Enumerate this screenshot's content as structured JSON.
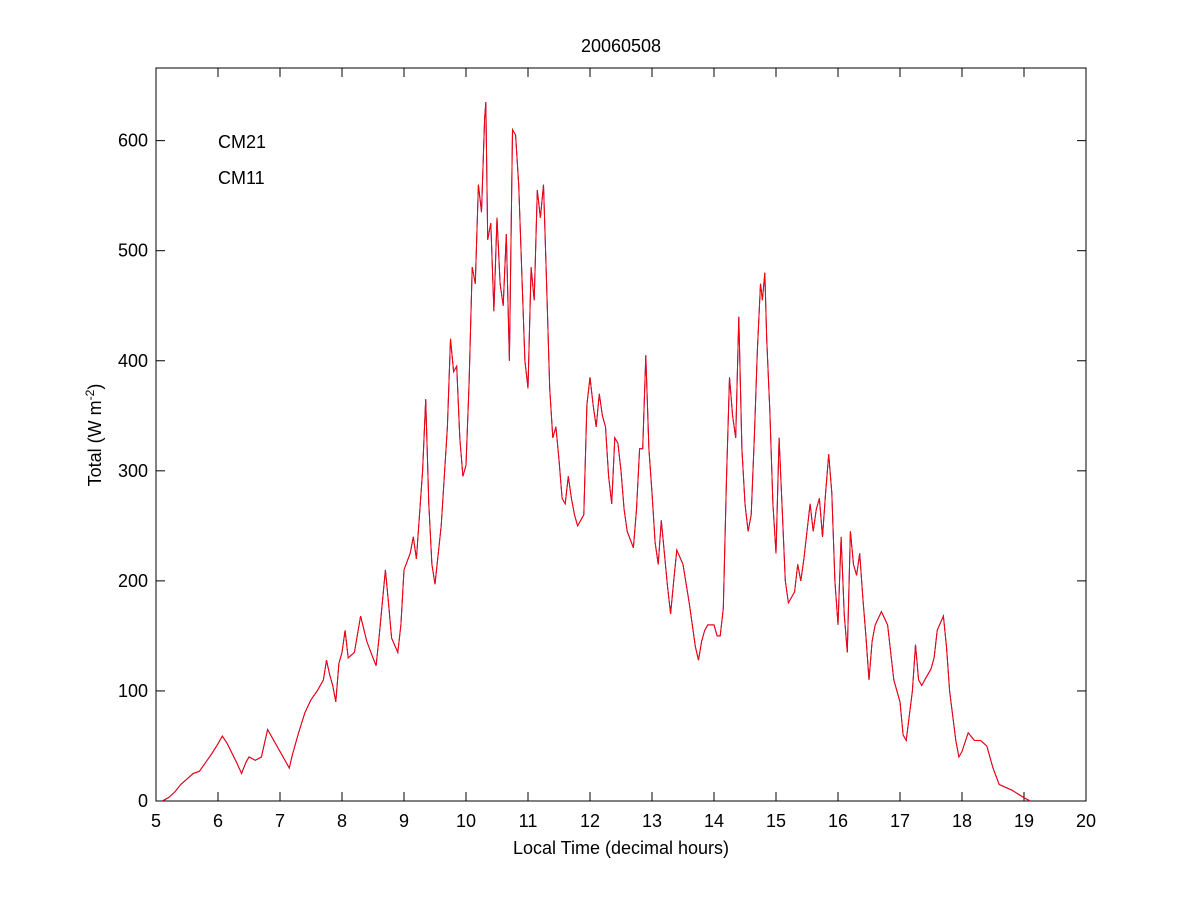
{
  "chart_data": {
    "type": "line",
    "title": "20060508",
    "xlabel": "Local Time (decimal hours)",
    "ylabel": {
      "text": "Total (W m",
      "superscript": "-2",
      "suffix": ")"
    },
    "xlim": [
      5,
      20
    ],
    "ylim": [
      0,
      666
    ],
    "xticks": [
      5,
      6,
      7,
      8,
      9,
      10,
      11,
      12,
      13,
      14,
      15,
      16,
      17,
      18,
      19,
      20
    ],
    "yticks": [
      0,
      100,
      200,
      300,
      400,
      500,
      600
    ],
    "grid": false,
    "legend": "upper left",
    "x": [
      5.1,
      5.2,
      5.3,
      5.4,
      5.5,
      5.6,
      5.7,
      5.8,
      5.9,
      6.0,
      6.07,
      6.15,
      6.3,
      6.38,
      6.45,
      6.5,
      6.6,
      6.7,
      6.8,
      6.9,
      7.0,
      7.1,
      7.15,
      7.2,
      7.3,
      7.4,
      7.5,
      7.6,
      7.7,
      7.75,
      7.8,
      7.85,
      7.9,
      7.95,
      8.0,
      8.05,
      8.1,
      8.2,
      8.3,
      8.4,
      8.5,
      8.55,
      8.6,
      8.7,
      8.75,
      8.8,
      8.9,
      8.95,
      9.0,
      9.1,
      9.15,
      9.2,
      9.3,
      9.35,
      9.4,
      9.45,
      9.5,
      9.6,
      9.7,
      9.75,
      9.8,
      9.85,
      9.9,
      9.95,
      10.0,
      10.05,
      10.1,
      10.15,
      10.2,
      10.25,
      10.3,
      10.32,
      10.35,
      10.4,
      10.45,
      10.5,
      10.55,
      10.6,
      10.65,
      10.7,
      10.75,
      10.8,
      10.85,
      10.9,
      10.95,
      11.0,
      11.05,
      11.1,
      11.15,
      11.2,
      11.25,
      11.3,
      11.35,
      11.4,
      11.45,
      11.5,
      11.55,
      11.6,
      11.65,
      11.7,
      11.75,
      11.8,
      11.9,
      11.95,
      12.0,
      12.05,
      12.1,
      12.15,
      12.2,
      12.25,
      12.3,
      12.35,
      12.4,
      12.45,
      12.5,
      12.55,
      12.6,
      12.7,
      12.75,
      12.8,
      12.85,
      12.9,
      12.95,
      13.0,
      13.05,
      13.1,
      13.15,
      13.2,
      13.25,
      13.3,
      13.35,
      13.4,
      13.5,
      13.6,
      13.7,
      13.75,
      13.8,
      13.85,
      13.9,
      14.0,
      14.05,
      14.1,
      14.15,
      14.2,
      14.25,
      14.3,
      14.35,
      14.4,
      14.45,
      14.5,
      14.55,
      14.6,
      14.65,
      14.7,
      14.75,
      14.78,
      14.82,
      14.85,
      14.9,
      14.95,
      15.0,
      15.05,
      15.1,
      15.15,
      15.2,
      15.3,
      15.35,
      15.4,
      15.45,
      15.5,
      15.55,
      15.6,
      15.65,
      15.7,
      15.75,
      15.8,
      15.85,
      15.9,
      15.95,
      16.0,
      16.05,
      16.1,
      16.15,
      16.2,
      16.25,
      16.3,
      16.35,
      16.4,
      16.45,
      16.5,
      16.55,
      16.6,
      16.7,
      16.8,
      16.9,
      17.0,
      17.05,
      17.1,
      17.2,
      17.25,
      17.3,
      17.35,
      17.4,
      17.5,
      17.55,
      17.6,
      17.7,
      17.75,
      17.8,
      17.9,
      17.95,
      18.0,
      18.1,
      18.2,
      18.3,
      18.4,
      18.5,
      18.6,
      18.8,
      19.0,
      19.1
    ],
    "series": [
      {
        "name": "CM21",
        "color": "#0000cc",
        "values": [
          0,
          3,
          8,
          15,
          20,
          25,
          27,
          35,
          43,
          52,
          59,
          52,
          35,
          25,
          35,
          40,
          37,
          40,
          65,
          55,
          45,
          35,
          30,
          42,
          62,
          80,
          92,
          100,
          110,
          128,
          115,
          105,
          90,
          125,
          135,
          155,
          130,
          135,
          168,
          145,
          130,
          123,
          150,
          210,
          180,
          148,
          135,
          160,
          210,
          225,
          240,
          220,
          300,
          365,
          270,
          215,
          197,
          250,
          340,
          420,
          390,
          395,
          330,
          295,
          305,
          380,
          485,
          470,
          560,
          535,
          620,
          635,
          510,
          525,
          445,
          530,
          470,
          450,
          515,
          400,
          610,
          605,
          560,
          480,
          400,
          375,
          485,
          455,
          555,
          530,
          560,
          470,
          375,
          330,
          340,
          310,
          275,
          270,
          295,
          275,
          260,
          250,
          260,
          360,
          385,
          360,
          340,
          370,
          350,
          340,
          295,
          270,
          330,
          325,
          300,
          265,
          245,
          230,
          265,
          320,
          320,
          405,
          320,
          280,
          235,
          215,
          255,
          225,
          195,
          170,
          200,
          228,
          215,
          180,
          140,
          128,
          145,
          155,
          160,
          160,
          150,
          150,
          175,
          290,
          385,
          350,
          330,
          440,
          320,
          270,
          245,
          260,
          330,
          410,
          470,
          455,
          480,
          420,
          355,
          270,
          225,
          330,
          265,
          200,
          180,
          190,
          215,
          200,
          220,
          245,
          270,
          245,
          265,
          275,
          240,
          280,
          315,
          280,
          200,
          160,
          240,
          170,
          135,
          245,
          215,
          205,
          225,
          185,
          150,
          110,
          145,
          160,
          172,
          160,
          110,
          90,
          60,
          55,
          100,
          142,
          110,
          105,
          110,
          120,
          130,
          155,
          168,
          140,
          100,
          55,
          40,
          45,
          62,
          55,
          55,
          50,
          30,
          15,
          10,
          3,
          0
        ]
      },
      {
        "name": "CM11",
        "color": "#ff0000",
        "values": [
          0,
          3,
          8,
          15,
          20,
          25,
          27,
          35,
          43,
          52,
          59,
          52,
          35,
          25,
          35,
          40,
          37,
          40,
          65,
          55,
          45,
          35,
          30,
          42,
          62,
          80,
          92,
          100,
          110,
          128,
          115,
          105,
          90,
          125,
          135,
          155,
          130,
          135,
          168,
          145,
          130,
          123,
          150,
          210,
          180,
          148,
          135,
          160,
          210,
          225,
          240,
          220,
          300,
          365,
          270,
          215,
          197,
          250,
          340,
          420,
          390,
          395,
          330,
          295,
          305,
          380,
          485,
          470,
          560,
          535,
          620,
          635,
          510,
          525,
          445,
          530,
          470,
          450,
          515,
          400,
          610,
          605,
          560,
          480,
          400,
          375,
          485,
          455,
          555,
          530,
          560,
          470,
          375,
          330,
          340,
          310,
          275,
          270,
          295,
          275,
          260,
          250,
          260,
          360,
          385,
          360,
          340,
          370,
          350,
          340,
          295,
          270,
          330,
          325,
          300,
          265,
          245,
          230,
          265,
          320,
          320,
          405,
          320,
          280,
          235,
          215,
          255,
          225,
          195,
          170,
          200,
          228,
          215,
          180,
          140,
          128,
          145,
          155,
          160,
          160,
          150,
          150,
          175,
          290,
          385,
          350,
          330,
          440,
          320,
          270,
          245,
          260,
          330,
          410,
          470,
          455,
          480,
          420,
          355,
          270,
          225,
          330,
          265,
          200,
          180,
          190,
          215,
          200,
          220,
          245,
          270,
          245,
          265,
          275,
          240,
          280,
          315,
          280,
          200,
          160,
          240,
          170,
          135,
          245,
          215,
          205,
          225,
          185,
          150,
          110,
          145,
          160,
          172,
          160,
          110,
          90,
          60,
          55,
          100,
          142,
          110,
          105,
          110,
          120,
          130,
          155,
          168,
          140,
          100,
          55,
          40,
          45,
          62,
          55,
          55,
          50,
          30,
          15,
          10,
          3,
          0
        ]
      }
    ]
  }
}
